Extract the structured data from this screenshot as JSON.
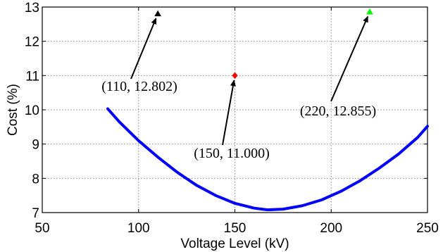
{
  "chart_data": {
    "type": "line",
    "title": "",
    "xlabel": "Voltage Level (kV)",
    "ylabel": "Cost (%)",
    "xlim": [
      50,
      250
    ],
    "ylim": [
      7,
      13
    ],
    "xticks": [
      "50",
      "100",
      "150",
      "200",
      "250"
    ],
    "yticks": [
      "7",
      "8",
      "9",
      "10",
      "11",
      "12",
      "13"
    ],
    "grid": true,
    "series": [
      {
        "color": "#0000ff",
        "x": [
          84,
          90,
          100,
          110,
          120,
          130,
          140,
          150,
          160,
          167,
          175,
          185,
          195,
          205,
          215,
          225,
          235,
          245,
          250
        ],
        "y": [
          10.03,
          9.65,
          9.1,
          8.62,
          8.18,
          7.8,
          7.5,
          7.27,
          7.13,
          7.08,
          7.1,
          7.2,
          7.37,
          7.62,
          7.93,
          8.3,
          8.71,
          9.2,
          9.52
        ]
      }
    ],
    "points": [
      {
        "x": 110,
        "y": 12.802,
        "color": "#000000",
        "marker": "triangle",
        "label": "(110, 12.802)"
      },
      {
        "x": 150,
        "y": 11.0,
        "color": "#ff0000",
        "marker": "diamond",
        "label": "(150, 11.000)"
      },
      {
        "x": 220,
        "y": 12.855,
        "color": "#00ff00",
        "marker": "triangle",
        "label": "(220, 12.855)"
      }
    ]
  }
}
